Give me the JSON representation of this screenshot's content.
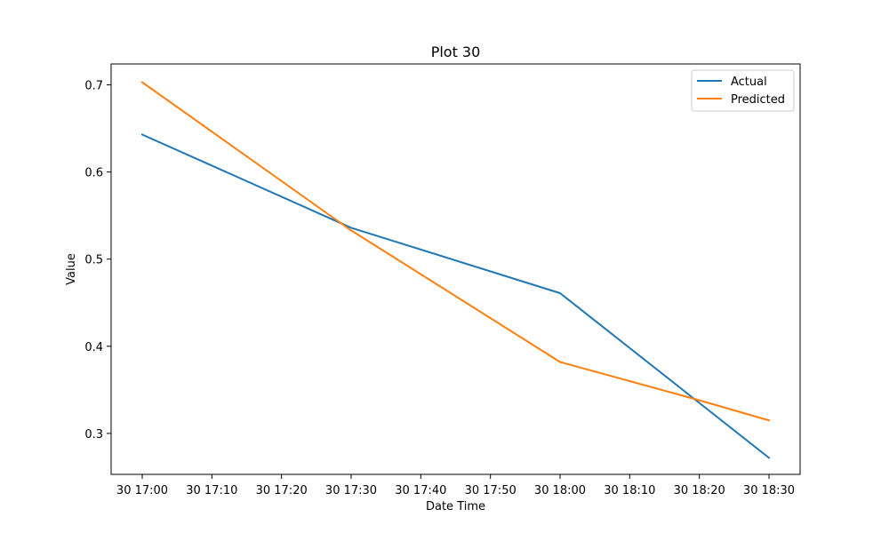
{
  "chart_data": {
    "type": "line",
    "title": "Plot 30",
    "xlabel": "Date Time",
    "ylabel": "Value",
    "x": [
      "30 17:00",
      "30 17:30",
      "30 18:00",
      "30 18:20",
      "30 18:30"
    ],
    "x_ticks": [
      "30 17:00",
      "30 17:10",
      "30 17:20",
      "30 17:30",
      "30 17:40",
      "30 17:50",
      "30 18:00",
      "30 18:10",
      "30 18:20",
      "30 18:30"
    ],
    "y_ticks": [
      "0.3",
      "0.4",
      "0.5",
      "0.6",
      "0.7"
    ],
    "ylim": [
      0.253,
      0.724
    ],
    "series": [
      {
        "name": "Actual",
        "color": "#1f77b4",
        "values": [
          0.643,
          0.536,
          0.461,
          0.335,
          0.272
        ]
      },
      {
        "name": "Predicted",
        "color": "#ff7f0e",
        "values": [
          0.703,
          0.533,
          0.382,
          0.338,
          0.315
        ]
      }
    ],
    "legend_position": "top-right",
    "grid": false
  }
}
